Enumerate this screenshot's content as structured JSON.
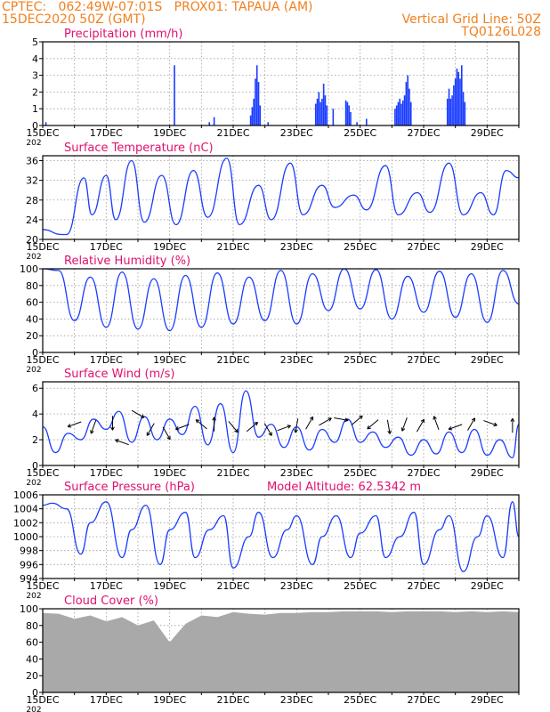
{
  "header": {
    "line1": "CPTEC:   062:49W-07:01S   PROX01: TAPAUA (AM)",
    "line2": "15DEC2020 50Z (GMT)",
    "grid_note": "Vertical Grid Line: 50Z",
    "code": "TQ0126L028"
  },
  "colors": {
    "header": "#f08020",
    "title": "#e0106e",
    "line": "#1a3cff",
    "cloud": "#a9a9a9"
  },
  "x_axis": {
    "start_label": "15DEC",
    "start_sublabel": "202",
    "dates": [
      "15DEC",
      "17DEC",
      "19DEC",
      "21DEC",
      "23DEC",
      "25DEC",
      "27DEC",
      "29DEC"
    ]
  },
  "chart_data": [
    {
      "type": "bar",
      "title": "Precipitation (mm/h)",
      "ylim": [
        0,
        5
      ],
      "yticks": [
        0,
        1,
        2,
        3,
        4,
        5
      ],
      "x_unit": "days since 15DEC",
      "bars": [
        [
          0.1,
          0.2
        ],
        [
          4.15,
          3.6
        ],
        [
          5.25,
          0.2
        ],
        [
          5.4,
          0.5
        ],
        [
          6.55,
          0.6
        ],
        [
          6.6,
          1.1
        ],
        [
          6.65,
          1.6
        ],
        [
          6.7,
          2.8
        ],
        [
          6.75,
          3.6
        ],
        [
          6.8,
          2.6
        ],
        [
          6.85,
          1.2
        ],
        [
          7.1,
          0.2
        ],
        [
          8.6,
          1.3
        ],
        [
          8.65,
          1.6
        ],
        [
          8.7,
          2.0
        ],
        [
          8.75,
          1.4
        ],
        [
          8.8,
          1.6
        ],
        [
          8.85,
          2.5
        ],
        [
          8.9,
          1.8
        ],
        [
          8.95,
          1.2
        ],
        [
          9.15,
          1.0
        ],
        [
          9.55,
          1.5
        ],
        [
          9.6,
          1.4
        ],
        [
          9.65,
          1.2
        ],
        [
          9.7,
          0.8
        ],
        [
          9.9,
          0.2
        ],
        [
          10.2,
          0.4
        ],
        [
          11.1,
          1.0
        ],
        [
          11.15,
          1.2
        ],
        [
          11.2,
          1.4
        ],
        [
          11.25,
          1.6
        ],
        [
          11.3,
          1.3
        ],
        [
          11.35,
          1.5
        ],
        [
          11.4,
          1.8
        ],
        [
          11.45,
          2.6
        ],
        [
          11.5,
          3.0
        ],
        [
          11.55,
          2.2
        ],
        [
          11.6,
          1.4
        ],
        [
          12.75,
          1.6
        ],
        [
          12.8,
          2.2
        ],
        [
          12.85,
          1.6
        ],
        [
          12.9,
          1.8
        ],
        [
          12.95,
          2.4
        ],
        [
          13.0,
          2.8
        ],
        [
          13.05,
          3.4
        ],
        [
          13.1,
          3.2
        ],
        [
          13.15,
          2.8
        ],
        [
          13.2,
          3.6
        ],
        [
          13.25,
          2.0
        ],
        [
          13.3,
          1.4
        ]
      ]
    },
    {
      "type": "line",
      "title": "Surface Temperature (nC)",
      "ylim": [
        20,
        37
      ],
      "yticks": [
        20,
        24,
        28,
        32,
        36
      ],
      "x": [
        0,
        0.6,
        0.75,
        1.3,
        1.55,
        2.0,
        2.3,
        2.8,
        3.2,
        3.75,
        4.2,
        4.75,
        5.2,
        5.8,
        6.2,
        6.8,
        7.2,
        7.8,
        8.2,
        8.8,
        9.2,
        9.8,
        10.2,
        10.8,
        11.2,
        11.8,
        12.2,
        12.8,
        13.25,
        13.8,
        14.2,
        14.6,
        15.0
      ],
      "values": [
        22,
        21,
        21,
        32.5,
        25,
        33,
        24,
        36,
        23.5,
        33,
        23,
        34,
        24.5,
        36.5,
        23,
        31,
        24,
        35.5,
        25,
        31,
        26.5,
        29,
        26,
        35,
        25,
        29.5,
        25.5,
        35.5,
        25,
        29.5,
        25,
        34,
        32.5
      ]
    },
    {
      "type": "line",
      "title": "Relative Humidity (%)",
      "ylim": [
        0,
        100
      ],
      "yticks": [
        0,
        20,
        40,
        60,
        80,
        100
      ],
      "x": [
        0,
        0.5,
        1.0,
        1.5,
        2.0,
        2.5,
        3.0,
        3.5,
        4.0,
        4.5,
        5.0,
        5.5,
        6.0,
        6.5,
        7.0,
        7.5,
        8.0,
        8.5,
        9.0,
        9.5,
        10.0,
        10.5,
        11.0,
        11.5,
        12.0,
        12.5,
        13.0,
        13.5,
        14.0,
        14.5,
        15.0
      ],
      "values": [
        100,
        98,
        38,
        90,
        30,
        96,
        28,
        88,
        26,
        92,
        30,
        95,
        34,
        90,
        38,
        98,
        34,
        94,
        50,
        100,
        52,
        99,
        40,
        91,
        48,
        97,
        42,
        94,
        36,
        98,
        58
      ]
    },
    {
      "type": "line",
      "title": "Surface Wind (m/s)",
      "ylim": [
        0,
        6.5
      ],
      "yticks": [
        0,
        2,
        4,
        6
      ],
      "x": [
        0,
        0.4,
        0.8,
        1.2,
        1.6,
        2.0,
        2.4,
        2.8,
        3.2,
        3.6,
        4.0,
        4.4,
        4.8,
        5.2,
        5.6,
        6.0,
        6.4,
        6.8,
        7.2,
        7.6,
        8.0,
        8.4,
        8.8,
        9.2,
        9.6,
        10.0,
        10.4,
        10.8,
        11.2,
        11.6,
        12.0,
        12.4,
        12.8,
        13.2,
        13.6,
        14.0,
        14.4,
        14.8,
        15.0
      ],
      "values": [
        3.0,
        1.0,
        2.5,
        2.0,
        3.6,
        2.8,
        4.2,
        1.8,
        3.8,
        2.0,
        3.6,
        2.4,
        4.6,
        1.6,
        4.8,
        1.0,
        5.8,
        2.2,
        3.2,
        1.4,
        3.0,
        1.2,
        2.8,
        1.8,
        3.6,
        1.8,
        2.6,
        1.4,
        2.2,
        0.8,
        2.0,
        0.9,
        2.6,
        1.0,
        2.8,
        0.8,
        2.0,
        0.6,
        3.2
      ],
      "arrows": [
        [
          1.0,
          3.2,
          200
        ],
        [
          1.6,
          3.0,
          250
        ],
        [
          2.2,
          3.3,
          270
        ],
        [
          2.5,
          1.8,
          160
        ],
        [
          3.0,
          4.0,
          330
        ],
        [
          3.4,
          2.8,
          240
        ],
        [
          3.9,
          2.5,
          300
        ],
        [
          4.4,
          3.0,
          200
        ],
        [
          5.0,
          3.2,
          140
        ],
        [
          5.4,
          3.2,
          90
        ],
        [
          6.0,
          3.0,
          310
        ],
        [
          6.6,
          3.0,
          40
        ],
        [
          7.1,
          2.8,
          300
        ],
        [
          7.6,
          2.9,
          20
        ],
        [
          8.0,
          3.1,
          260
        ],
        [
          8.4,
          3.3,
          60
        ],
        [
          8.9,
          3.4,
          30
        ],
        [
          9.4,
          3.6,
          350
        ],
        [
          9.9,
          3.5,
          40
        ],
        [
          10.4,
          3.2,
          220
        ],
        [
          10.9,
          3.0,
          280
        ],
        [
          11.4,
          3.2,
          250
        ],
        [
          11.9,
          3.1,
          60
        ],
        [
          12.4,
          3.3,
          110
        ],
        [
          13.0,
          3.0,
          200
        ],
        [
          13.5,
          3.2,
          60
        ],
        [
          14.1,
          3.3,
          340
        ],
        [
          14.8,
          3.1,
          90
        ]
      ]
    },
    {
      "type": "line",
      "title": "Surface Pressure (hPa)",
      "annotation": "Model Altitude: 62.5342 m",
      "ylim": [
        994,
        1006
      ],
      "yticks": [
        994,
        996,
        998,
        1000,
        1002,
        1004,
        1006
      ],
      "x": [
        0,
        0.3,
        0.75,
        1.2,
        1.5,
        2.0,
        2.5,
        2.8,
        3.25,
        3.7,
        4.0,
        4.5,
        4.8,
        5.25,
        5.7,
        6.0,
        6.5,
        6.8,
        7.25,
        7.7,
        8.0,
        8.5,
        8.8,
        9.25,
        9.7,
        10.0,
        10.5,
        10.8,
        11.25,
        11.7,
        12.0,
        12.5,
        12.8,
        13.25,
        13.7,
        14.0,
        14.5,
        14.8,
        15.0
      ],
      "values": [
        1004.5,
        1004.8,
        1004,
        997.5,
        1002,
        1005,
        997,
        1001,
        1004.5,
        996,
        1001,
        1003.5,
        997,
        1001,
        1003,
        995.5,
        1000,
        1003.5,
        997,
        1001,
        1003,
        996,
        1000,
        1003,
        997,
        1000.5,
        1003,
        997,
        1000,
        1003.5,
        996,
        1001,
        1003,
        995,
        1000,
        1003,
        997,
        1005,
        1000
      ]
    },
    {
      "type": "area",
      "title": "Cloud Cover (%)",
      "ylim": [
        0,
        100
      ],
      "yticks": [
        0,
        20,
        40,
        60,
        80,
        100
      ],
      "x": [
        0,
        0.5,
        1.0,
        1.5,
        2.0,
        2.5,
        3.0,
        3.5,
        4.0,
        4.5,
        5.0,
        5.5,
        6.0,
        6.5,
        7.0,
        7.5,
        8.0,
        8.5,
        9.0,
        9.5,
        10.0,
        10.5,
        11.0,
        11.5,
        12.0,
        12.5,
        13.0,
        13.5,
        14.0,
        14.5,
        15.0
      ],
      "values": [
        95,
        94,
        88,
        92,
        85,
        90,
        80,
        86,
        60,
        82,
        92,
        90,
        96,
        94,
        93,
        95,
        95,
        96,
        96,
        97,
        97,
        97,
        96,
        97,
        97,
        97,
        96,
        97,
        96,
        97,
        96
      ]
    }
  ]
}
